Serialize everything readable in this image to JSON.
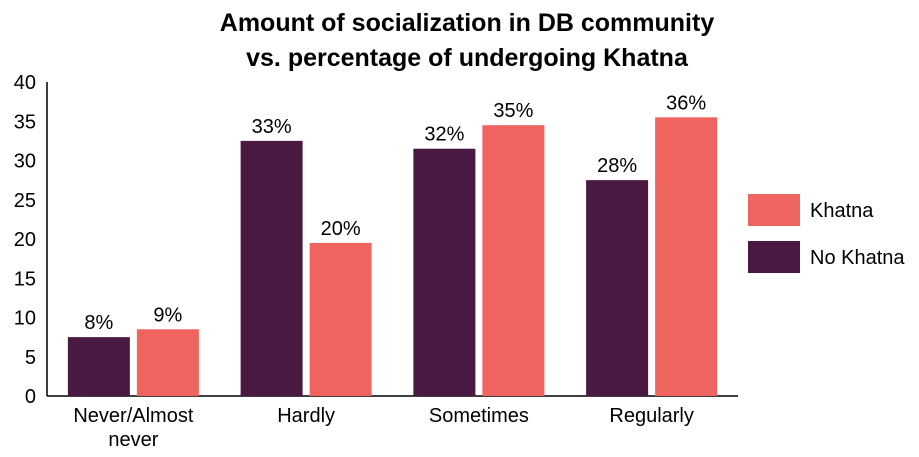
{
  "chart_data": {
    "type": "bar",
    "title_lines": [
      "Amount of socialization in DB community",
      "vs. percentage of undergoing Khatna"
    ],
    "categories": [
      [
        "Never/Almost",
        "never"
      ],
      [
        "Hardly"
      ],
      [
        "Sometimes"
      ],
      [
        "Regularly"
      ]
    ],
    "series": [
      {
        "name": "No Khatna",
        "color": "#4a1942",
        "values": [
          7.5,
          32.5,
          31.5,
          27.5
        ],
        "labels": [
          "8%",
          "33%",
          "32%",
          "28%"
        ]
      },
      {
        "name": "Khatna",
        "color": "#f06460",
        "values": [
          8.5,
          19.5,
          34.5,
          35.5
        ],
        "labels": [
          "9%",
          "20%",
          "35%",
          "36%"
        ]
      }
    ],
    "ylim": [
      0,
      40
    ],
    "yticks": [
      "0",
      "5",
      "10",
      "15",
      "20",
      "25",
      "30",
      "35",
      "40"
    ],
    "grid": false,
    "legend": {
      "placement": "right",
      "order": [
        "Khatna",
        "No Khatna"
      ]
    }
  }
}
